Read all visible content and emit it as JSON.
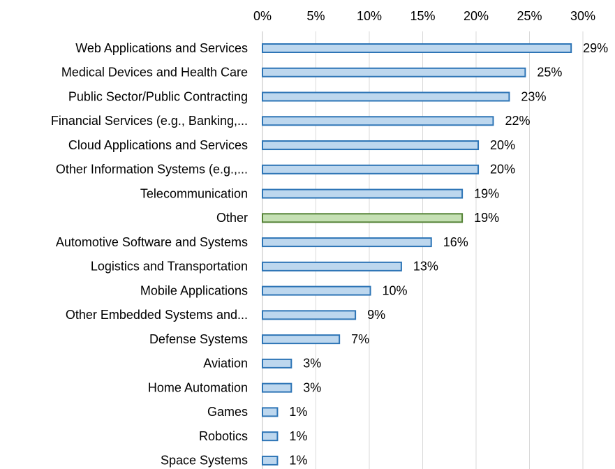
{
  "chart_data": {
    "type": "barh",
    "categories": [
      "Web Applications and Services",
      "Medical Devices and Health Care",
      "Public Sector/Public Contracting",
      "Financial Services (e.g., Banking,...",
      "Cloud Applications and Services",
      "Other Information Systems (e.g.,...",
      "Telecommunication",
      "Other",
      "Automotive Software and Systems",
      "Logistics and Transportation",
      "Mobile Applications",
      "Other Embedded Systems and...",
      "Defense Systems",
      "Aviation",
      "Home Automation",
      "Games",
      "Robotics",
      "Space Systems"
    ],
    "values": [
      28.9,
      24.6,
      23.1,
      21.6,
      20.2,
      20.2,
      18.7,
      18.7,
      15.8,
      13.0,
      10.1,
      8.7,
      7.2,
      2.7,
      2.7,
      1.4,
      1.4,
      1.4
    ],
    "value_labels": [
      "29%",
      "25%",
      "23%",
      "22%",
      "20%",
      "20%",
      "19%",
      "19%",
      "16%",
      "13%",
      "10%",
      "9%",
      "7%",
      "3%",
      "3%",
      "1%",
      "1%",
      "1%"
    ],
    "colors": [
      "#bdd7ee",
      "#bdd7ee",
      "#bdd7ee",
      "#bdd7ee",
      "#bdd7ee",
      "#bdd7ee",
      "#bdd7ee",
      "#c5e0b4",
      "#bdd7ee",
      "#bdd7ee",
      "#bdd7ee",
      "#bdd7ee",
      "#bdd7ee",
      "#bdd7ee",
      "#bdd7ee",
      "#bdd7ee",
      "#bdd7ee",
      "#bdd7ee"
    ],
    "edge_colors": [
      "#2e75b6",
      "#2e75b6",
      "#2e75b6",
      "#2e75b6",
      "#2e75b6",
      "#2e75b6",
      "#2e75b6",
      "#548235",
      "#2e75b6",
      "#2e75b6",
      "#2e75b6",
      "#2e75b6",
      "#2e75b6",
      "#2e75b6",
      "#2e75b6",
      "#2e75b6",
      "#2e75b6",
      "#2e75b6"
    ],
    "xlim": [
      0,
      30
    ],
    "xticks": [
      {
        "value": 0,
        "label": "0%"
      },
      {
        "value": 5,
        "label": "5%"
      },
      {
        "value": 10,
        "label": "10%"
      },
      {
        "value": 15,
        "label": "15%"
      },
      {
        "value": 20,
        "label": "20%"
      },
      {
        "value": 25,
        "label": "25%"
      },
      {
        "value": 30,
        "label": "30%"
      }
    ],
    "grid": true
  }
}
